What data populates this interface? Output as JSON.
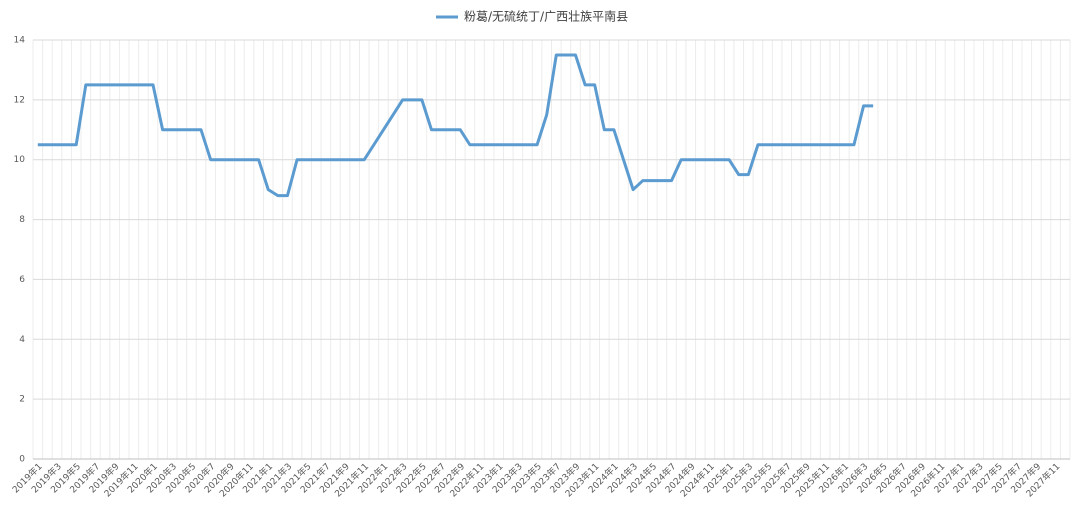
{
  "chart_data": {
    "type": "line",
    "categories": [
      "2019年1",
      null,
      "2019年3",
      null,
      "2019年5",
      null,
      "2019年7",
      null,
      "2019年9",
      null,
      "2019年11",
      null,
      "2020年1",
      null,
      "2020年3",
      null,
      "2020年5",
      null,
      "2020年7",
      null,
      "2020年9",
      null,
      "2020年11",
      null,
      "2021年1",
      null,
      "2021年3",
      null,
      "2021年5",
      null,
      "2021年7",
      null,
      "2021年9",
      null,
      "2021年11",
      null,
      "2022年1",
      null,
      "2022年3",
      null,
      "2022年5",
      null,
      "2022年7",
      null,
      "2022年9",
      null,
      "2022年11",
      null,
      "2023年1",
      null,
      "2023年3",
      null,
      "2023年5",
      null,
      "2023年7",
      null,
      "2023年9",
      null,
      "2023年11",
      null,
      "2024年1",
      null,
      "2024年3",
      null,
      "2024年5",
      null,
      "2024年7",
      null,
      "2024年9",
      null,
      "2024年11",
      null,
      "2025年1",
      null,
      "2025年3",
      null,
      "2025年5",
      null,
      "2025年7",
      null,
      "2025年9",
      null,
      "2025年11",
      null,
      "2026年1",
      null,
      "2026年3",
      null,
      "2026年5",
      null,
      "2026年7",
      null,
      "2026年9",
      null,
      "2026年11",
      null,
      "2027年1",
      null,
      "2027年3",
      null,
      "2027年5",
      null,
      "2027年7",
      null,
      "2027年9",
      null,
      "2027年11",
      null
    ],
    "series": [
      {
        "name": "粉葛/无硫统丁/广西壮族平南县",
        "color": "#5b9bd0",
        "values": [
          10.5,
          10.5,
          10.5,
          10.5,
          10.5,
          12.5,
          12.5,
          12.5,
          12.5,
          12.5,
          12.5,
          12.5,
          12.5,
          11,
          11,
          11,
          11,
          11,
          10,
          10,
          10,
          10,
          10,
          10,
          9,
          8.8,
          8.8,
          10,
          10,
          10,
          10,
          10,
          10,
          10,
          10,
          10.5,
          11,
          11.5,
          12,
          12,
          12,
          11,
          11,
          11,
          11,
          10.5,
          10.5,
          10.5,
          10.5,
          10.5,
          10.5,
          10.5,
          10.5,
          11.5,
          13.5,
          13.5,
          13.5,
          12.5,
          12.5,
          11,
          11,
          10,
          9,
          9.3,
          9.3,
          9.3,
          9.3,
          10,
          10,
          10,
          10,
          10,
          10,
          9.5,
          9.5,
          10.5,
          10.5,
          10.5,
          10.5,
          10.5,
          10.5,
          10.5,
          10.5,
          10.5,
          10.5,
          10.5,
          11.8,
          11.8,
          null,
          null,
          null,
          null,
          null,
          null,
          null,
          null,
          null,
          null,
          null,
          null,
          null,
          null,
          null,
          null,
          null,
          null,
          null,
          null
        ]
      }
    ],
    "ylim": [
      0,
      14
    ],
    "yticks": [
      0,
      2,
      4,
      6,
      8,
      10,
      12,
      14
    ],
    "grid": true,
    "legend": "top"
  }
}
